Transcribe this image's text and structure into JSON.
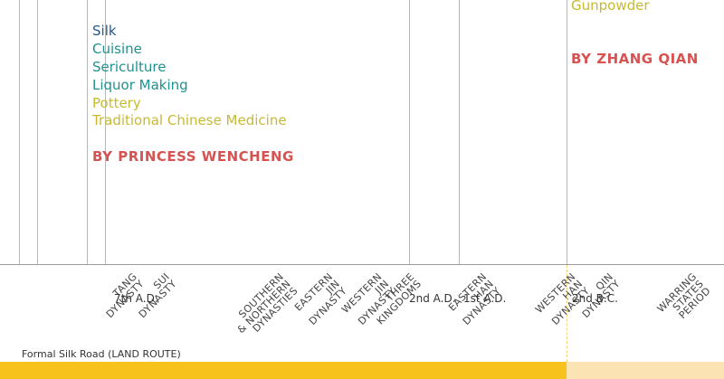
{
  "tang_items": [
    {
      "label": "Silk",
      "color": "#1f5a8c"
    },
    {
      "label": "Cuisine",
      "color": "#20918f"
    },
    {
      "label": "Sericulture",
      "color": "#20918f"
    },
    {
      "label": "Liquor Making",
      "color": "#20918f"
    },
    {
      "label": "Pottery",
      "color": "#c8b933"
    },
    {
      "label": "Traditional Chinese Medicine",
      "color": "#c8b933"
    }
  ],
  "tang_credit": {
    "label": "BY PRINCESS WENCHENG",
    "color": "#d65352"
  },
  "han_items": [
    {
      "label": "Gunpowder",
      "color": "#c8b933"
    }
  ],
  "han_credit": {
    "label": "BY ZHANG QIAN",
    "color": "#d65352"
  },
  "periods": [
    {
      "lines": [
        "Tang",
        "Dynasty"
      ]
    },
    {
      "lines": [
        "Sui",
        "Dynasty"
      ]
    },
    {
      "lines": [
        "Southern",
        "& Northern",
        "Dynasties"
      ]
    },
    {
      "lines": [
        "Eastern",
        "Jin",
        "Dynasty"
      ]
    },
    {
      "lines": [
        "Western",
        "Jin",
        "Dynasty"
      ]
    },
    {
      "lines": [
        "Three",
        "Kingdoms"
      ]
    },
    {
      "lines": [
        "Eastern",
        "Han",
        "Dynasty"
      ]
    },
    {
      "lines": [
        "Western",
        "Han",
        "Dynasty"
      ]
    },
    {
      "lines": [
        "Qin",
        "Dynasty"
      ]
    },
    {
      "lines": [
        "Warring",
        "States",
        "Period"
      ]
    }
  ],
  "dates": [
    "7th A.D.",
    "2nd A.D.",
    "1st A.D.",
    "2nd B.C."
  ],
  "route": {
    "label": "Formal Silk Road (LAND ROUTE)",
    "color_solid": "#f7c21b",
    "color_light": "#fbe3b4"
  }
}
